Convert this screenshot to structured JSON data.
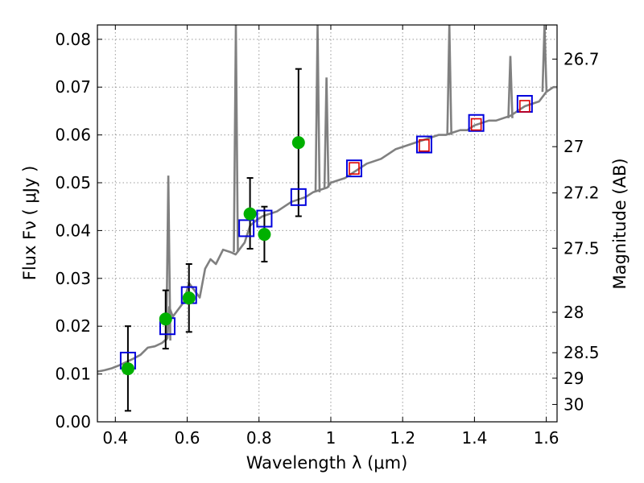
{
  "chart_data": {
    "type": "scatter",
    "xlabel": "Wavelength  λ (μm)",
    "ylabel": "Flux  Fν ( μJy )",
    "y2label": "Magnitude (AB)",
    "xlim": [
      0.35,
      1.63
    ],
    "ylim": [
      0.0,
      0.083
    ],
    "grid": true,
    "x_ticks": [
      0.4,
      0.6,
      0.8,
      1.0,
      1.2,
      1.4,
      1.6
    ],
    "x_tick_labels": [
      "0.4",
      "0.6",
      "0.8",
      "1",
      "1.2",
      "1.4",
      "1.6"
    ],
    "y_ticks": [
      0.0,
      0.01,
      0.02,
      0.03,
      0.04,
      0.05,
      0.06,
      0.07,
      0.08
    ],
    "y_tick_labels": [
      "0.00",
      "0.01",
      "0.02",
      "0.03",
      "0.04",
      "0.05",
      "0.06",
      "0.07",
      "0.08"
    ],
    "mag_ticks": [
      26.7,
      27,
      27.2,
      27.5,
      28,
      28.5,
      29,
      30
    ],
    "mag_tick_labels": [
      "26.7",
      "27",
      "27.2",
      "27.5",
      "28",
      "28.5",
      "29",
      "30"
    ],
    "colors": {
      "model": "#808080",
      "observed": "#00b000",
      "model_phot": "#0000dd",
      "ir_inner": "#dd0000",
      "errorbar": "#000000",
      "grid": "#999999"
    },
    "model_sed": {
      "x": [
        0.35,
        0.37,
        0.39,
        0.41,
        0.43,
        0.45,
        0.47,
        0.49,
        0.51,
        0.53,
        0.545,
        0.55,
        0.56,
        0.575,
        0.59,
        0.605,
        0.615,
        0.625,
        0.635,
        0.65,
        0.665,
        0.68,
        0.7,
        0.72,
        0.735,
        0.745,
        0.76,
        0.775,
        0.79,
        0.81,
        0.83,
        0.85,
        0.87,
        0.89,
        0.91,
        0.93,
        0.95,
        0.97,
        0.99,
        1.0,
        1.02,
        1.04,
        1.06,
        1.08,
        1.1,
        1.12,
        1.14,
        1.16,
        1.18,
        1.2,
        1.22,
        1.24,
        1.26,
        1.28,
        1.3,
        1.32,
        1.34,
        1.36,
        1.38,
        1.4,
        1.42,
        1.44,
        1.46,
        1.48,
        1.5,
        1.52,
        1.54,
        1.56,
        1.58,
        1.6,
        1.62,
        1.63
      ],
      "y": [
        0.0105,
        0.0108,
        0.0112,
        0.0118,
        0.0125,
        0.0132,
        0.014,
        0.0155,
        0.0158,
        0.0165,
        0.0175,
        0.024,
        0.022,
        0.0235,
        0.025,
        0.029,
        0.028,
        0.027,
        0.026,
        0.032,
        0.034,
        0.033,
        0.036,
        0.0355,
        0.035,
        0.036,
        0.0375,
        0.041,
        0.042,
        0.043,
        0.0435,
        0.044,
        0.045,
        0.046,
        0.0465,
        0.047,
        0.048,
        0.0485,
        0.049,
        0.05,
        0.0505,
        0.051,
        0.052,
        0.053,
        0.054,
        0.0545,
        0.055,
        0.056,
        0.057,
        0.0575,
        0.058,
        0.0585,
        0.059,
        0.0595,
        0.06,
        0.06,
        0.0605,
        0.061,
        0.061,
        0.062,
        0.0625,
        0.063,
        0.063,
        0.0635,
        0.064,
        0.065,
        0.066,
        0.0665,
        0.067,
        0.069,
        0.07,
        0.07
      ]
    },
    "emission_lines": [
      {
        "x": 0.5475,
        "y0": 0.017,
        "peak": 0.0515
      },
      {
        "x": 0.7355,
        "y0": 0.0355,
        "peak": 0.083
      },
      {
        "x": 0.963,
        "y0": 0.048,
        "peak": 0.083
      },
      {
        "x": 0.988,
        "y0": 0.049,
        "peak": 0.072
      },
      {
        "x": 1.33,
        "y0": 0.06,
        "peak": 0.083
      },
      {
        "x": 1.5,
        "y0": 0.0635,
        "peak": 0.0765
      },
      {
        "x": 1.595,
        "y0": 0.069,
        "peak": 0.083
      }
    ],
    "observed": {
      "x": [
        0.435,
        0.54,
        0.605,
        0.775,
        0.815,
        0.91
      ],
      "y": [
        0.0111,
        0.0215,
        0.0259,
        0.0435,
        0.0392,
        0.0584
      ],
      "yerr_low": [
        0.0023,
        0.0153,
        0.0188,
        0.0362,
        0.0335,
        0.043
      ],
      "yerr_high": [
        0.02,
        0.0275,
        0.033,
        0.051,
        0.045,
        0.0738
      ]
    },
    "model_photometry": {
      "x": [
        0.435,
        0.545,
        0.605,
        0.765,
        0.815,
        0.91,
        1.065,
        1.26,
        1.405,
        1.54
      ],
      "y": [
        0.0128,
        0.02,
        0.0265,
        0.0405,
        0.0425,
        0.047,
        0.053,
        0.058,
        0.0625,
        0.0665
      ]
    },
    "ir_photometry": {
      "x": [
        1.065,
        1.26,
        1.405,
        1.54
      ],
      "y": [
        0.053,
        0.0578,
        0.0622,
        0.066
      ]
    }
  }
}
